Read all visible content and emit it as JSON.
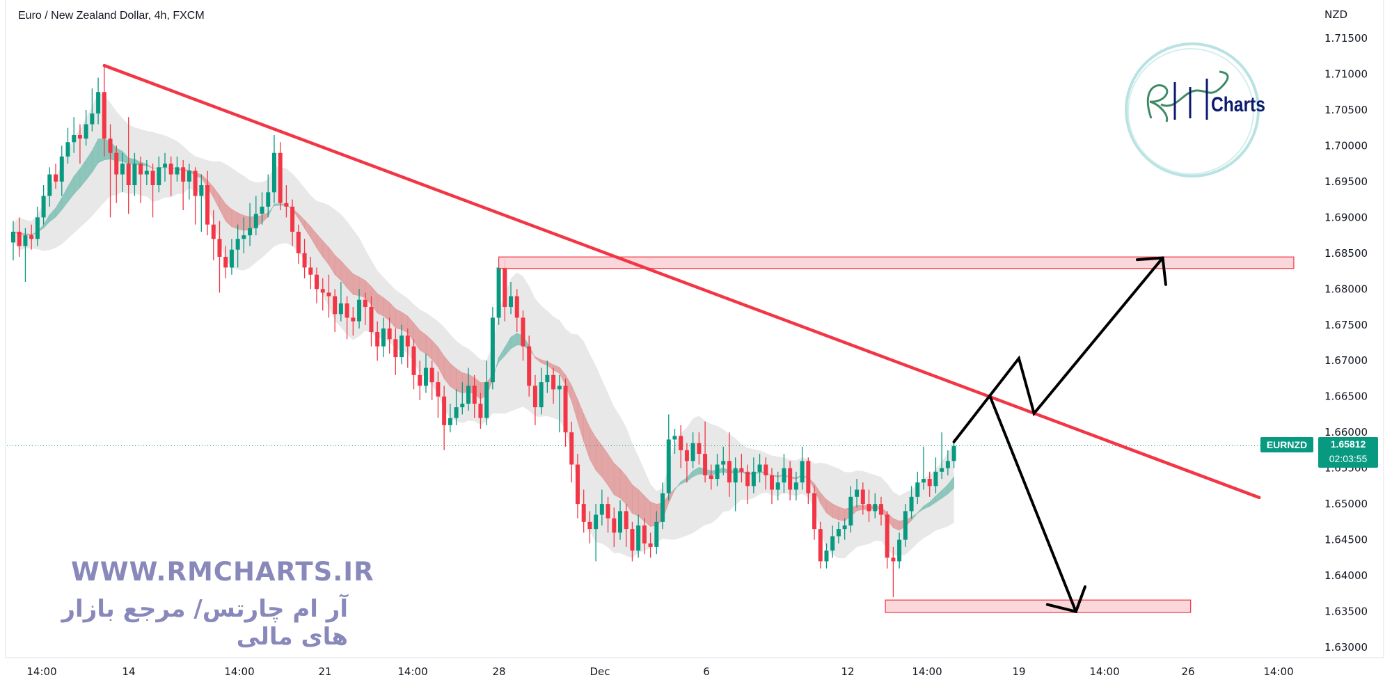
{
  "header": {
    "title": "Euro / New Zealand Dollar, 4h, FXCM"
  },
  "price_axis": {
    "currency": "NZD",
    "ticks": [
      "1.71500",
      "1.71000",
      "1.70500",
      "1.70000",
      "1.69500",
      "1.69000",
      "1.68500",
      "1.68000",
      "1.67500",
      "1.67000",
      "1.66500",
      "1.66000",
      "1.65500",
      "1.65000",
      "1.64500",
      "1.64000",
      "1.63500",
      "1.63000"
    ]
  },
  "time_axis": {
    "ticks": [
      "14:00",
      "14",
      "14:00",
      "21",
      "14:00",
      "28",
      "Dec",
      "6",
      "12",
      "14:00",
      "19",
      "14:00",
      "26",
      "14:00"
    ]
  },
  "last_price": {
    "symbol": "EURNZD",
    "price": "1.65812",
    "countdown": "02:03:55",
    "color": "#089981"
  },
  "watermark": {
    "url": "WWW.RMCHARTS.IR",
    "tagline": "آر ام چارتس/ مرجع بازار های مالی",
    "color": "#8888bb"
  },
  "logo": {
    "text": "Charts",
    "brand": "RM Charts"
  },
  "colors": {
    "up": "#089981",
    "down": "#f23645",
    "trendline": "#f23645",
    "zone_fill": "#f8d0d4",
    "arrows": "#000000"
  },
  "chart_data": {
    "type": "candlestick",
    "symbol": "EURNZD",
    "interval": "4h",
    "ylim": [
      1.63,
      1.715
    ],
    "grid": false,
    "ohlc": [
      [
        1.6865,
        1.6895,
        1.684,
        1.688
      ],
      [
        1.688,
        1.69,
        1.6845,
        1.686
      ],
      [
        1.686,
        1.6885,
        1.681,
        1.6875
      ],
      [
        1.6875,
        1.689,
        1.6855,
        1.687
      ],
      [
        1.687,
        1.6915,
        1.686,
        1.69
      ],
      [
        1.69,
        1.6945,
        1.689,
        1.693
      ],
      [
        1.693,
        1.697,
        1.6915,
        1.696
      ],
      [
        1.696,
        1.6975,
        1.694,
        1.695
      ],
      [
        1.695,
        1.7,
        1.693,
        1.6985
      ],
      [
        1.6985,
        1.7025,
        1.6975,
        1.7005
      ],
      [
        1.7005,
        1.704,
        1.699,
        1.7015
      ],
      [
        1.7015,
        1.703,
        1.6975,
        1.701
      ],
      [
        1.701,
        1.705,
        1.7,
        1.703
      ],
      [
        1.703,
        1.708,
        1.702,
        1.7045
      ],
      [
        1.7045,
        1.7095,
        1.703,
        1.7075
      ],
      [
        1.7075,
        1.7112,
        1.6985,
        1.701
      ],
      [
        1.701,
        1.703,
        1.69,
        1.699
      ],
      [
        1.699,
        1.7,
        1.692,
        1.696
      ],
      [
        1.696,
        1.699,
        1.6935,
        1.6975
      ],
      [
        1.6975,
        1.704,
        1.6905,
        1.6945
      ],
      [
        1.6945,
        1.699,
        1.693,
        1.6975
      ],
      [
        1.6975,
        1.6985,
        1.692,
        1.696
      ],
      [
        1.696,
        1.698,
        1.6945,
        1.6965
      ],
      [
        1.6965,
        1.6975,
        1.69,
        1.6945
      ],
      [
        1.6945,
        1.6985,
        1.6935,
        1.697
      ],
      [
        1.697,
        1.699,
        1.695,
        1.6975
      ],
      [
        1.6975,
        1.6985,
        1.693,
        1.696
      ],
      [
        1.696,
        1.6985,
        1.695,
        1.697
      ],
      [
        1.697,
        1.698,
        1.691,
        1.695
      ],
      [
        1.695,
        1.6975,
        1.6925,
        1.6965
      ],
      [
        1.6965,
        1.697,
        1.689,
        1.693
      ],
      [
        1.693,
        1.696,
        1.688,
        1.6945
      ],
      [
        1.6945,
        1.6965,
        1.6875,
        1.689
      ],
      [
        1.689,
        1.691,
        1.684,
        1.687
      ],
      [
        1.687,
        1.6895,
        1.6795,
        1.6845
      ],
      [
        1.6845,
        1.686,
        1.6815,
        1.683
      ],
      [
        1.683,
        1.687,
        1.682,
        1.6855
      ],
      [
        1.6855,
        1.689,
        1.683,
        1.687
      ],
      [
        1.687,
        1.69,
        1.685,
        1.6875
      ],
      [
        1.6875,
        1.692,
        1.686,
        1.6885
      ],
      [
        1.6885,
        1.693,
        1.6875,
        1.6905
      ],
      [
        1.6905,
        1.6935,
        1.689,
        1.6915
      ],
      [
        1.6915,
        1.696,
        1.69,
        1.6935
      ],
      [
        1.6935,
        1.7015,
        1.692,
        1.699
      ],
      [
        1.699,
        1.7005,
        1.691,
        1.692
      ],
      [
        1.692,
        1.6945,
        1.69,
        1.6915
      ],
      [
        1.6915,
        1.6925,
        1.686,
        1.688
      ],
      [
        1.688,
        1.689,
        1.6835,
        1.685
      ],
      [
        1.685,
        1.687,
        1.6815,
        1.683
      ],
      [
        1.683,
        1.6845,
        1.68,
        1.682
      ],
      [
        1.682,
        1.683,
        1.678,
        1.68
      ],
      [
        1.68,
        1.6815,
        1.677,
        1.6795
      ],
      [
        1.6795,
        1.682,
        1.676,
        1.679
      ],
      [
        1.679,
        1.68,
        1.674,
        1.6765
      ],
      [
        1.6765,
        1.681,
        1.6755,
        1.678
      ],
      [
        1.678,
        1.679,
        1.673,
        1.676
      ],
      [
        1.676,
        1.6775,
        1.6735,
        1.6755
      ],
      [
        1.6755,
        1.68,
        1.6745,
        1.6785
      ],
      [
        1.6785,
        1.6795,
        1.675,
        1.6775
      ],
      [
        1.6775,
        1.679,
        1.672,
        1.674
      ],
      [
        1.674,
        1.6755,
        1.67,
        1.672
      ],
      [
        1.672,
        1.676,
        1.6705,
        1.6745
      ],
      [
        1.6745,
        1.676,
        1.671,
        1.673
      ],
      [
        1.673,
        1.6745,
        1.668,
        1.6705
      ],
      [
        1.6705,
        1.675,
        1.6695,
        1.6735
      ],
      [
        1.6735,
        1.6745,
        1.669,
        1.672
      ],
      [
        1.672,
        1.673,
        1.666,
        1.668
      ],
      [
        1.668,
        1.67,
        1.6645,
        1.6665
      ],
      [
        1.6665,
        1.671,
        1.6655,
        1.669
      ],
      [
        1.669,
        1.67,
        1.6645,
        1.667
      ],
      [
        1.667,
        1.6685,
        1.662,
        1.665
      ],
      [
        1.665,
        1.6665,
        1.6575,
        1.661
      ],
      [
        1.661,
        1.664,
        1.66,
        1.662
      ],
      [
        1.662,
        1.666,
        1.661,
        1.6635
      ],
      [
        1.6635,
        1.667,
        1.6625,
        1.664
      ],
      [
        1.664,
        1.669,
        1.663,
        1.6665
      ],
      [
        1.6665,
        1.668,
        1.662,
        1.664
      ],
      [
        1.664,
        1.6655,
        1.6605,
        1.662
      ],
      [
        1.662,
        1.67,
        1.661,
        1.667
      ],
      [
        1.667,
        1.6775,
        1.666,
        1.676
      ],
      [
        1.676,
        1.6845,
        1.675,
        1.683
      ],
      [
        1.683,
        1.684,
        1.6755,
        1.6775
      ],
      [
        1.6775,
        1.681,
        1.6765,
        1.679
      ],
      [
        1.679,
        1.68,
        1.674,
        1.676
      ],
      [
        1.676,
        1.677,
        1.67,
        1.672
      ],
      [
        1.672,
        1.6735,
        1.665,
        1.6665
      ],
      [
        1.6665,
        1.668,
        1.661,
        1.6635
      ],
      [
        1.6635,
        1.669,
        1.6625,
        1.667
      ],
      [
        1.667,
        1.67,
        1.6655,
        1.668
      ],
      [
        1.668,
        1.669,
        1.664,
        1.666
      ],
      [
        1.666,
        1.668,
        1.66,
        1.6665
      ],
      [
        1.6665,
        1.6675,
        1.658,
        1.66
      ],
      [
        1.66,
        1.6615,
        1.653,
        1.6555
      ],
      [
        1.6555,
        1.657,
        1.648,
        1.65
      ],
      [
        1.65,
        1.652,
        1.646,
        1.6475
      ],
      [
        1.6475,
        1.649,
        1.6445,
        1.6465
      ],
      [
        1.6465,
        1.65,
        1.642,
        1.6485
      ],
      [
        1.6485,
        1.652,
        1.647,
        1.65
      ],
      [
        1.65,
        1.651,
        1.646,
        1.648
      ],
      [
        1.648,
        1.6495,
        1.644,
        1.646
      ],
      [
        1.646,
        1.6505,
        1.645,
        1.649
      ],
      [
        1.649,
        1.65,
        1.644,
        1.6465
      ],
      [
        1.6465,
        1.6475,
        1.642,
        1.6435
      ],
      [
        1.6435,
        1.6485,
        1.6425,
        1.647
      ],
      [
        1.647,
        1.648,
        1.643,
        1.6445
      ],
      [
        1.6445,
        1.646,
        1.6425,
        1.644
      ],
      [
        1.644,
        1.649,
        1.643,
        1.6475
      ],
      [
        1.6475,
        1.653,
        1.6465,
        1.6515
      ],
      [
        1.6515,
        1.6625,
        1.6505,
        1.659
      ],
      [
        1.659,
        1.6605,
        1.657,
        1.6595
      ],
      [
        1.6595,
        1.661,
        1.655,
        1.6575
      ],
      [
        1.6575,
        1.6585,
        1.653,
        1.656
      ],
      [
        1.656,
        1.66,
        1.655,
        1.6585
      ],
      [
        1.6585,
        1.66,
        1.6555,
        1.657
      ],
      [
        1.657,
        1.6615,
        1.653,
        1.654
      ],
      [
        1.654,
        1.6555,
        1.652,
        1.6535
      ],
      [
        1.6535,
        1.657,
        1.6525,
        1.6555
      ],
      [
        1.6555,
        1.658,
        1.654,
        1.656
      ],
      [
        1.656,
        1.66,
        1.651,
        1.653
      ],
      [
        1.653,
        1.6565,
        1.649,
        1.655
      ],
      [
        1.655,
        1.657,
        1.653,
        1.6545
      ],
      [
        1.6545,
        1.6555,
        1.65,
        1.6525
      ],
      [
        1.6525,
        1.6565,
        1.6515,
        1.6545
      ],
      [
        1.6545,
        1.657,
        1.653,
        1.6555
      ],
      [
        1.6555,
        1.6565,
        1.652,
        1.654
      ],
      [
        1.654,
        1.655,
        1.65,
        1.652
      ],
      [
        1.652,
        1.6545,
        1.6505,
        1.653
      ],
      [
        1.653,
        1.657,
        1.6515,
        1.655
      ],
      [
        1.655,
        1.656,
        1.6505,
        1.652
      ],
      [
        1.652,
        1.6545,
        1.6505,
        1.653
      ],
      [
        1.653,
        1.658,
        1.652,
        1.656
      ],
      [
        1.656,
        1.6565,
        1.65,
        1.6515
      ],
      [
        1.6515,
        1.6525,
        1.645,
        1.6465
      ],
      [
        1.6465,
        1.6475,
        1.641,
        1.642
      ],
      [
        1.642,
        1.6445,
        1.641,
        1.6435
      ],
      [
        1.6435,
        1.647,
        1.6425,
        1.6455
      ],
      [
        1.6455,
        1.6475,
        1.6445,
        1.6465
      ],
      [
        1.6465,
        1.648,
        1.645,
        1.647
      ],
      [
        1.647,
        1.6525,
        1.646,
        1.651
      ],
      [
        1.651,
        1.6535,
        1.6495,
        1.652
      ],
      [
        1.652,
        1.653,
        1.6485,
        1.65
      ],
      [
        1.65,
        1.652,
        1.6475,
        1.649
      ],
      [
        1.649,
        1.6515,
        1.648,
        1.65
      ],
      [
        1.65,
        1.651,
        1.647,
        1.6485
      ],
      [
        1.6485,
        1.649,
        1.641,
        1.6425
      ],
      [
        1.6425,
        1.644,
        1.637,
        1.642
      ],
      [
        1.642,
        1.646,
        1.641,
        1.645
      ],
      [
        1.645,
        1.65,
        1.644,
        1.649
      ],
      [
        1.649,
        1.6525,
        1.648,
        1.651
      ],
      [
        1.651,
        1.6545,
        1.65,
        1.653
      ],
      [
        1.653,
        1.658,
        1.652,
        1.6535
      ],
      [
        1.6535,
        1.6545,
        1.651,
        1.6525
      ],
      [
        1.6525,
        1.6565,
        1.6515,
        1.6545
      ],
      [
        1.6545,
        1.66,
        1.6535,
        1.655
      ],
      [
        1.655,
        1.6575,
        1.654,
        1.656
      ],
      [
        1.656,
        1.659,
        1.655,
        1.6581
      ]
    ],
    "annotations": {
      "trendline": {
        "from": [
          15,
          1.7112
        ],
        "to": [
          205.3,
          1.6509
        ]
      },
      "resistance_zone": {
        "from_bar": 80,
        "to_bar": 211,
        "top": 1.68448,
        "bottom": 1.68287
      },
      "support_zone": {
        "from_bar": 143.7,
        "to_bar": 194,
        "top": 1.63659,
        "bottom": 1.63485
      },
      "bullish_path": [
        [
          155,
          1.65867
        ],
        [
          165.7,
          1.67033
        ],
        [
          168.2,
          1.66264
        ],
        [
          189.4,
          1.68435
        ]
      ],
      "bullish_head": [
        [
          185.2,
          1.6841
        ],
        [
          189.4,
          1.68435
        ],
        [
          189.9,
          1.68063
        ]
      ],
      "bearish_path": [
        [
          160.9,
          1.66512
        ],
        [
          175.1,
          1.63498
        ]
      ],
      "bearish_head": [
        [
          170.4,
          1.63597
        ],
        [
          175.1,
          1.63498
        ],
        [
          176.6,
          1.63845
        ]
      ]
    }
  }
}
